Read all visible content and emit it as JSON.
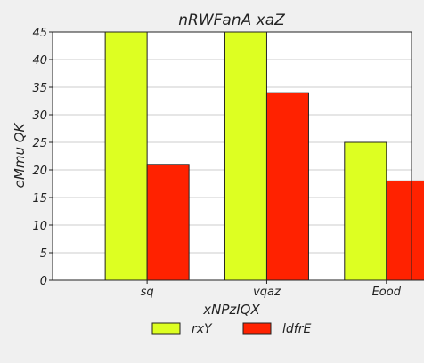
{
  "chart_data": {
    "type": "bar",
    "title": "nRWFanA xaZ",
    "xlabel": "xNPzIQX",
    "ylabel": "eMmu QK",
    "categories": [
      "sq",
      "vqaz",
      "Eood"
    ],
    "series": [
      {
        "name": "rxY",
        "values": [
          45,
          45,
          25
        ],
        "color": "#ddff22"
      },
      {
        "name": "ldfrE",
        "values": [
          21,
          34,
          18
        ],
        "color": "#ff2200"
      }
    ],
    "ylim": [
      0,
      45
    ],
    "yticks": [
      0,
      5,
      10,
      15,
      20,
      25,
      30,
      35,
      40,
      45
    ],
    "grid": true,
    "legend_position": "bottom"
  }
}
